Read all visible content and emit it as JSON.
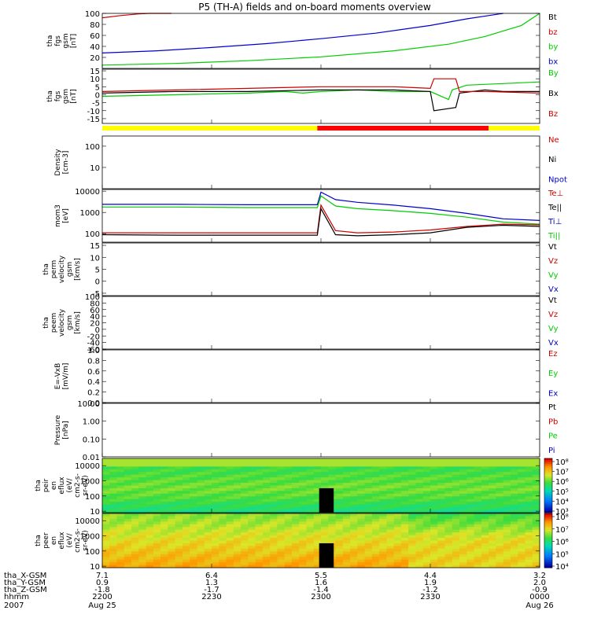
{
  "title": "P5 (TH-A) fields and on-board moments overview",
  "colors": {
    "black": "#000000",
    "red": "#cc0000",
    "green": "#00cc00",
    "blue": "#0000cc",
    "yellow": "#ffff00",
    "modebar_red": "#ff0000"
  },
  "chart_data": {
    "type": "line",
    "time": {
      "start": "2007-08-25 22:00",
      "end": "2007-08-26 00:00",
      "ticks": [
        "2200",
        "2230",
        "2300",
        "2330",
        "0000"
      ],
      "dates": [
        "Aug 25",
        "",
        "",
        "",
        "Aug 26"
      ],
      "year": "2007"
    },
    "ephemeris": {
      "rows": [
        {
          "label": "tha_X-GSM",
          "values": [
            "7.1",
            "6.4",
            "5.5",
            "4.4",
            "3.2"
          ]
        },
        {
          "label": "tha_Y-GSM",
          "values": [
            "0.9",
            "1.3",
            "1.6",
            "1.9",
            "2.0"
          ]
        },
        {
          "label": "tha_Z-GSM",
          "values": [
            "-1.8",
            "-1.7",
            "-1.4",
            "-1.2",
            "-0.9"
          ]
        },
        {
          "label": "hhmm",
          "values": [
            "2200",
            "2230",
            "2300",
            "2330",
            "0000"
          ]
        }
      ]
    },
    "panels": [
      {
        "id": "fgs_bt",
        "ylabel": [
          "tha",
          "fgs",
          "gsm",
          "[nT]"
        ],
        "ylim": [
          0,
          100
        ],
        "yticks": [
          "100",
          "80",
          "60",
          "40",
          "20"
        ],
        "legend": [
          {
            "text": "Bt",
            "color": "#000000"
          },
          {
            "text": "bz",
            "color": "#cc0000"
          },
          {
            "text": "by",
            "color": "#00cc00"
          },
          {
            "text": "bx",
            "color": "#0000cc"
          }
        ],
        "series": [
          {
            "color": "#cc0000",
            "x": [
              0,
              5,
              10,
              13,
              16,
              19
            ],
            "y": [
              92,
              96,
              99,
              100,
              100,
              100
            ]
          },
          {
            "color": "#0000cc",
            "x": [
              0,
              15,
              30,
              45,
              60,
              75,
              90,
              100,
              110
            ],
            "y": [
              28,
              32,
              38,
              45,
              54,
              64,
              78,
              90,
              100
            ]
          },
          {
            "color": "#00cc00",
            "x": [
              0,
              20,
              40,
              60,
              80,
              95,
              105,
              115,
              120
            ],
            "y": [
              6,
              9,
              14,
              21,
              32,
              44,
              58,
              78,
              100
            ]
          }
        ]
      },
      {
        "id": "fgs_b",
        "ylabel": [
          "tha",
          "fgs",
          "gsm",
          "[nT]"
        ],
        "ylim": [
          -18,
          16
        ],
        "yticks": [
          "15",
          "10",
          "5",
          "0",
          "-5",
          "-10",
          "-15"
        ],
        "legend": [
          {
            "text": "By",
            "color": "#00cc00"
          },
          {
            "text": "Bx",
            "color": "#000000"
          },
          {
            "text": "Bz",
            "color": "#cc0000"
          }
        ],
        "series": [
          {
            "color": "#00cc00",
            "x": [
              0,
              20,
              40,
              50,
              55,
              60,
              70,
              80,
              90,
              95,
              96,
              100,
              110,
              120
            ],
            "y": [
              -1,
              0,
              1,
              2,
              1,
              2,
              3,
              2,
              2,
              -3,
              3,
              6,
              7,
              8
            ]
          },
          {
            "color": "#000000",
            "x": [
              0,
              20,
              40,
              60,
              80,
              90,
              91,
              97,
              98,
              105,
              110,
              120
            ],
            "y": [
              1,
              2,
              2,
              3,
              3,
              2,
              -10,
              -8,
              1,
              3,
              2,
              2
            ]
          },
          {
            "color": "#cc0000",
            "x": [
              0,
              20,
              40,
              60,
              80,
              90,
              91,
              97,
              98,
              105,
              120
            ],
            "y": [
              2,
              3,
              4,
              5,
              5,
              4,
              10,
              10,
              2,
              2,
              1
            ]
          }
        ]
      },
      {
        "id": "density",
        "ylabel": [
          "Density",
          "[cm-3]"
        ],
        "log": true,
        "ylim": [
          1,
          300
        ],
        "yticks": [
          "100",
          "10"
        ],
        "legend": [
          {
            "text": "Ne",
            "color": "#cc0000"
          },
          {
            "text": "Ni",
            "color": "#000000"
          },
          {
            "text": "Npot",
            "color": "#0000cc"
          }
        ],
        "series": []
      },
      {
        "id": "temperature",
        "ylabel": [
          "mom3",
          "[eV]"
        ],
        "log": true,
        "ylim": [
          40,
          12000
        ],
        "yticks": [
          "10000",
          "1000",
          "100"
        ],
        "legend": [
          {
            "text": "Te⊥",
            "color": "#cc0000"
          },
          {
            "text": "Te||",
            "color": "#000000"
          },
          {
            "text": "Ti⊥",
            "color": "#0000cc"
          },
          {
            "text": "Ti||",
            "color": "#00cc00"
          }
        ],
        "series": [
          {
            "color": "#0000cc",
            "x": [
              0,
              20,
              40,
              59,
              60,
              64,
              70,
              80,
              90,
              100,
              110,
              120
            ],
            "y": [
              2400,
              2400,
              2300,
              2300,
              9000,
              4000,
              3000,
              2200,
              1500,
              900,
              500,
              420
            ]
          },
          {
            "color": "#00cc00",
            "x": [
              0,
              20,
              40,
              59,
              60,
              64,
              70,
              80,
              90,
              100,
              110,
              120
            ],
            "y": [
              1800,
              1800,
              1700,
              1700,
              6000,
              2000,
              1500,
              1200,
              900,
              600,
              350,
              280
            ]
          },
          {
            "color": "#cc0000",
            "x": [
              0,
              20,
              40,
              59,
              60,
              64,
              70,
              80,
              90,
              100,
              110,
              120
            ],
            "y": [
              110,
              110,
              110,
              110,
              2200,
              140,
              110,
              120,
              150,
              220,
              280,
              260
            ]
          },
          {
            "color": "#000000",
            "x": [
              0,
              20,
              40,
              59,
              60,
              64,
              70,
              80,
              90,
              100,
              110,
              120
            ],
            "y": [
              90,
              85,
              85,
              85,
              1500,
              90,
              80,
              90,
              110,
              200,
              250,
              220
            ]
          }
        ]
      },
      {
        "id": "perm_velocity",
        "ylabel": [
          "tha",
          "perm",
          "velocity",
          "gsm",
          "[km/s]"
        ],
        "ylim": [
          -6,
          16
        ],
        "yticks": [
          "15",
          "10",
          "5",
          "0",
          "-5"
        ],
        "legend": [
          {
            "text": "Vt",
            "color": "#000000"
          },
          {
            "text": "Vz",
            "color": "#cc0000"
          },
          {
            "text": "Vy",
            "color": "#00cc00"
          },
          {
            "text": "Vx",
            "color": "#0000cc"
          }
        ],
        "series": []
      },
      {
        "id": "peem_velocity",
        "ylabel": [
          "tha",
          "peem",
          "velocity",
          "gsm",
          "[km/s]"
        ],
        "ylim": [
          -60,
          100
        ],
        "yticks": [
          "100",
          "80",
          "60",
          "40",
          "20",
          "0",
          "-20",
          "-40",
          "-60"
        ],
        "legend": [
          {
            "text": "Vt",
            "color": "#000000"
          },
          {
            "text": "Vz",
            "color": "#cc0000"
          },
          {
            "text": "Vy",
            "color": "#00cc00"
          },
          {
            "text": "Vx",
            "color": "#0000cc"
          }
        ],
        "series": []
      },
      {
        "id": "efield",
        "ylabel": [
          "E=-VxB",
          "[mV/m]"
        ],
        "ylim": [
          0,
          1
        ],
        "yticks": [
          "1.0",
          "0.8",
          "0.6",
          "0.4",
          "0.2",
          "0.0"
        ],
        "legend": [
          {
            "text": "Ez",
            "color": "#cc0000"
          },
          {
            "text": "Ey",
            "color": "#00cc00"
          },
          {
            "text": "Ex",
            "color": "#0000cc"
          }
        ],
        "series": []
      },
      {
        "id": "pressure",
        "ylabel": [
          "Pressure",
          "[nPa]"
        ],
        "log": true,
        "ylim": [
          0.01,
          10
        ],
        "yticks": [
          "10.00",
          "1.00",
          "0.10",
          "0.01"
        ],
        "legend": [
          {
            "text": "Pt",
            "color": "#000000"
          },
          {
            "text": "Pb",
            "color": "#cc0000"
          },
          {
            "text": "Pe",
            "color": "#00cc00"
          },
          {
            "text": "Pi",
            "color": "#0000cc"
          }
        ],
        "series": []
      },
      {
        "id": "peir_spectrogram",
        "type": "heatmap",
        "ylabel": [
          "tha",
          "peir",
          "en",
          "eflux",
          "(eV/",
          "cm2-s-",
          "sr-eV)"
        ],
        "log": true,
        "ylim": [
          8,
          30000
        ],
        "yticks": [
          "10000",
          "1000",
          "100",
          "10"
        ],
        "colorbar": [
          "10⁸",
          "10⁷",
          "10⁶",
          "10⁵",
          "10⁴",
          "10³"
        ],
        "clim_exp": [
          3,
          8
        ]
      },
      {
        "id": "peer_spectrogram",
        "type": "heatmap",
        "ylabel": [
          "tha",
          "peer",
          "en",
          "eflux",
          "(eV/",
          "cm2-s-",
          "sr-eV)"
        ],
        "log": true,
        "ylim": [
          8,
          30000
        ],
        "yticks": [
          "10000",
          "1000",
          "100",
          "10"
        ],
        "colorbar": [
          "10⁸",
          "10⁷",
          "10⁶",
          "10⁵",
          "10⁴"
        ],
        "clim_exp": [
          4,
          8
        ]
      }
    ]
  }
}
